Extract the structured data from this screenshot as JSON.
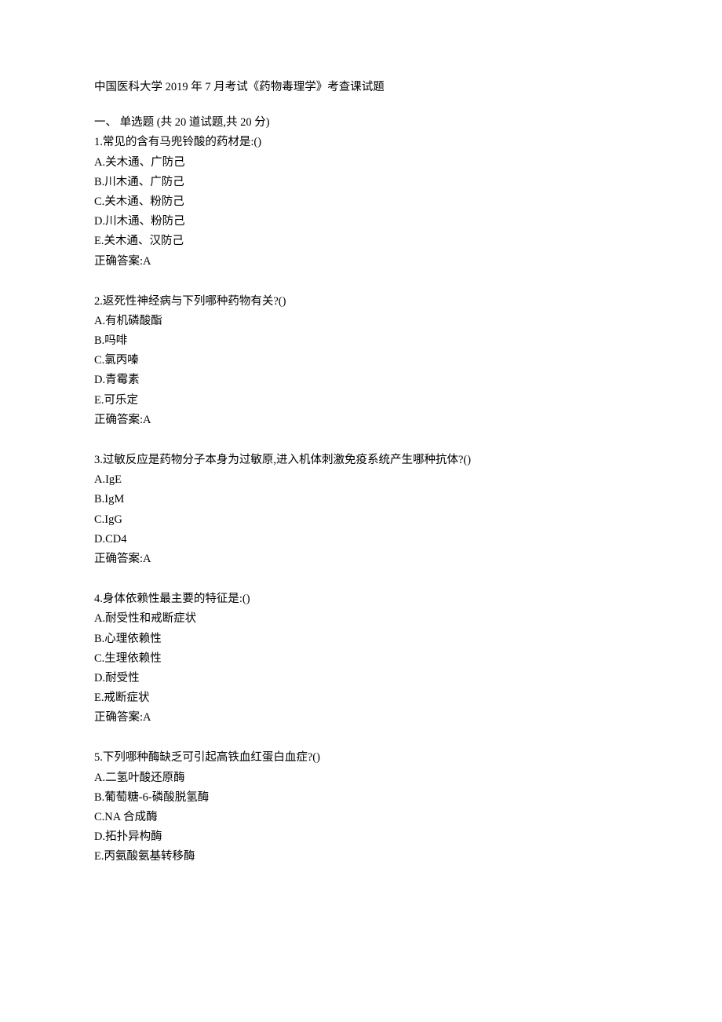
{
  "title": "中国医科大学 2019 年 7 月考试《药物毒理学》考查课试题",
  "section_header": "一、  单选题 (共 20 道试题,共 20 分)",
  "answer_prefix": "正确答案:",
  "questions": [
    {
      "number": "1",
      "text": "常见的含有马兜铃酸的药材是:()",
      "options": [
        {
          "label": "A",
          "text": "关木通、广防己"
        },
        {
          "label": "B",
          "text": "川木通、广防己"
        },
        {
          "label": "C",
          "text": "关木通、粉防己"
        },
        {
          "label": "D",
          "text": "川木通、粉防己"
        },
        {
          "label": "E",
          "text": "关木通、汉防己"
        }
      ],
      "answer": "A"
    },
    {
      "number": "2",
      "text": "返死性神经病与下列哪种药物有关?()",
      "options": [
        {
          "label": "A",
          "text": "有机磷酸酯"
        },
        {
          "label": "B",
          "text": "吗啡"
        },
        {
          "label": "C",
          "text": "氯丙嗪"
        },
        {
          "label": "D",
          "text": "青霉素"
        },
        {
          "label": "E",
          "text": "可乐定"
        }
      ],
      "answer": "A"
    },
    {
      "number": "3",
      "text": "过敏反应是药物分子本身为过敏原,进入机体刺激免疫系统产生哪种抗体?()",
      "options": [
        {
          "label": "A",
          "text": "IgE"
        },
        {
          "label": "B",
          "text": "IgM"
        },
        {
          "label": "C",
          "text": "IgG"
        },
        {
          "label": "D",
          "text": "CD4"
        }
      ],
      "answer": "A"
    },
    {
      "number": "4",
      "text": "身体依赖性最主要的特征是:()",
      "options": [
        {
          "label": "A",
          "text": "耐受性和戒断症状"
        },
        {
          "label": "B",
          "text": "心理依赖性"
        },
        {
          "label": "C",
          "text": "生理依赖性"
        },
        {
          "label": "D",
          "text": "耐受性"
        },
        {
          "label": "E",
          "text": "戒断症状"
        }
      ],
      "answer": "A"
    },
    {
      "number": "5",
      "text": "下列哪种酶缺乏可引起高铁血红蛋白血症?()",
      "options": [
        {
          "label": "A",
          "text": "二氢叶酸还原酶"
        },
        {
          "label": "B",
          "text": "葡萄糖-6-磷酸脱氢酶"
        },
        {
          "label": "C",
          "text": "NA 合成酶"
        },
        {
          "label": "D",
          "text": "拓扑异构酶"
        },
        {
          "label": "E",
          "text": "丙氨酸氨基转移酶"
        }
      ],
      "answer": null
    }
  ]
}
